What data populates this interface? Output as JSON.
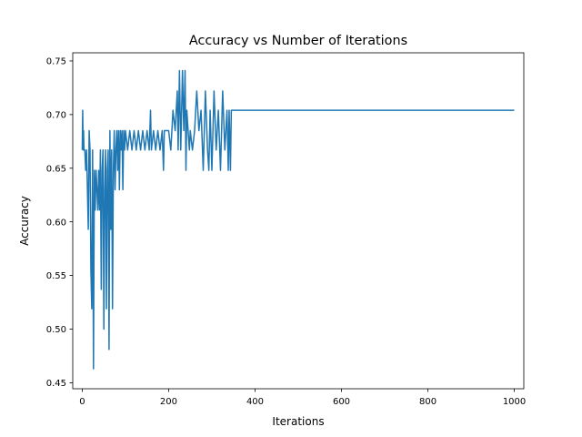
{
  "chart_data": {
    "type": "line",
    "title": "Accuracy vs Number of Iterations",
    "xlabel": "Iterations",
    "ylabel": "Accuracy",
    "xlim": [
      -22,
      1022
    ],
    "ylim": [
      0.4444,
      0.7576
    ],
    "x_ticks": [
      0,
      200,
      400,
      600,
      800,
      1000
    ],
    "x_tick_labels": [
      "0",
      "200",
      "400",
      "600",
      "800",
      "1000"
    ],
    "y_ticks": [
      0.45,
      0.5,
      0.55,
      0.6,
      0.65,
      0.7,
      0.75
    ],
    "y_tick_labels": [
      "0.45",
      "0.50",
      "0.55",
      "0.60",
      "0.65",
      "0.70",
      "0.75"
    ],
    "grid": false,
    "legend": "none",
    "series": [
      {
        "color": "#1f77b4",
        "x": [
          0,
          1,
          2,
          3,
          4,
          6,
          8,
          10,
          12,
          14,
          16,
          18,
          20,
          22,
          24,
          26,
          28,
          30,
          32,
          34,
          36,
          38,
          40,
          42,
          44,
          46,
          48,
          50,
          52,
          54,
          56,
          58,
          60,
          62,
          64,
          66,
          68,
          70,
          72,
          74,
          76,
          78,
          80,
          82,
          84,
          86,
          88,
          90,
          92,
          94,
          96,
          98,
          100,
          105,
          110,
          115,
          120,
          125,
          130,
          135,
          140,
          145,
          150,
          155,
          158,
          160,
          165,
          170,
          175,
          180,
          185,
          188,
          190,
          195,
          200,
          205,
          210,
          215,
          220,
          222,
          225,
          228,
          230,
          232,
          235,
          238,
          240,
          242,
          245,
          248,
          250,
          255,
          260,
          265,
          270,
          275,
          280,
          285,
          290,
          293,
          296,
          300,
          305,
          310,
          315,
          320,
          325,
          330,
          335,
          338,
          340,
          343,
          345,
          350,
          1000
        ],
        "y": [
          0.667,
          0.704,
          0.667,
          0.685,
          0.667,
          0.667,
          0.648,
          0.667,
          0.63,
          0.593,
          0.685,
          0.667,
          0.556,
          0.519,
          0.667,
          0.463,
          0.648,
          0.611,
          0.648,
          0.63,
          0.611,
          0.648,
          0.611,
          0.667,
          0.537,
          0.648,
          0.667,
          0.5,
          0.63,
          0.667,
          0.519,
          0.648,
          0.667,
          0.481,
          0.685,
          0.593,
          0.667,
          0.519,
          0.648,
          0.685,
          0.63,
          0.667,
          0.685,
          0.648,
          0.685,
          0.63,
          0.685,
          0.667,
          0.685,
          0.63,
          0.685,
          0.667,
          0.685,
          0.667,
          0.685,
          0.667,
          0.685,
          0.667,
          0.685,
          0.667,
          0.685,
          0.667,
          0.685,
          0.667,
          0.704,
          0.667,
          0.685,
          0.667,
          0.685,
          0.667,
          0.685,
          0.648,
          0.685,
          0.685,
          0.685,
          0.667,
          0.704,
          0.685,
          0.722,
          0.667,
          0.741,
          0.667,
          0.704,
          0.741,
          0.685,
          0.741,
          0.648,
          0.704,
          0.685,
          0.667,
          0.685,
          0.667,
          0.685,
          0.722,
          0.685,
          0.704,
          0.648,
          0.722,
          0.667,
          0.648,
          0.704,
          0.648,
          0.722,
          0.667,
          0.704,
          0.648,
          0.722,
          0.667,
          0.704,
          0.648,
          0.704,
          0.648,
          0.704,
          0.704,
          0.704
        ]
      }
    ]
  }
}
